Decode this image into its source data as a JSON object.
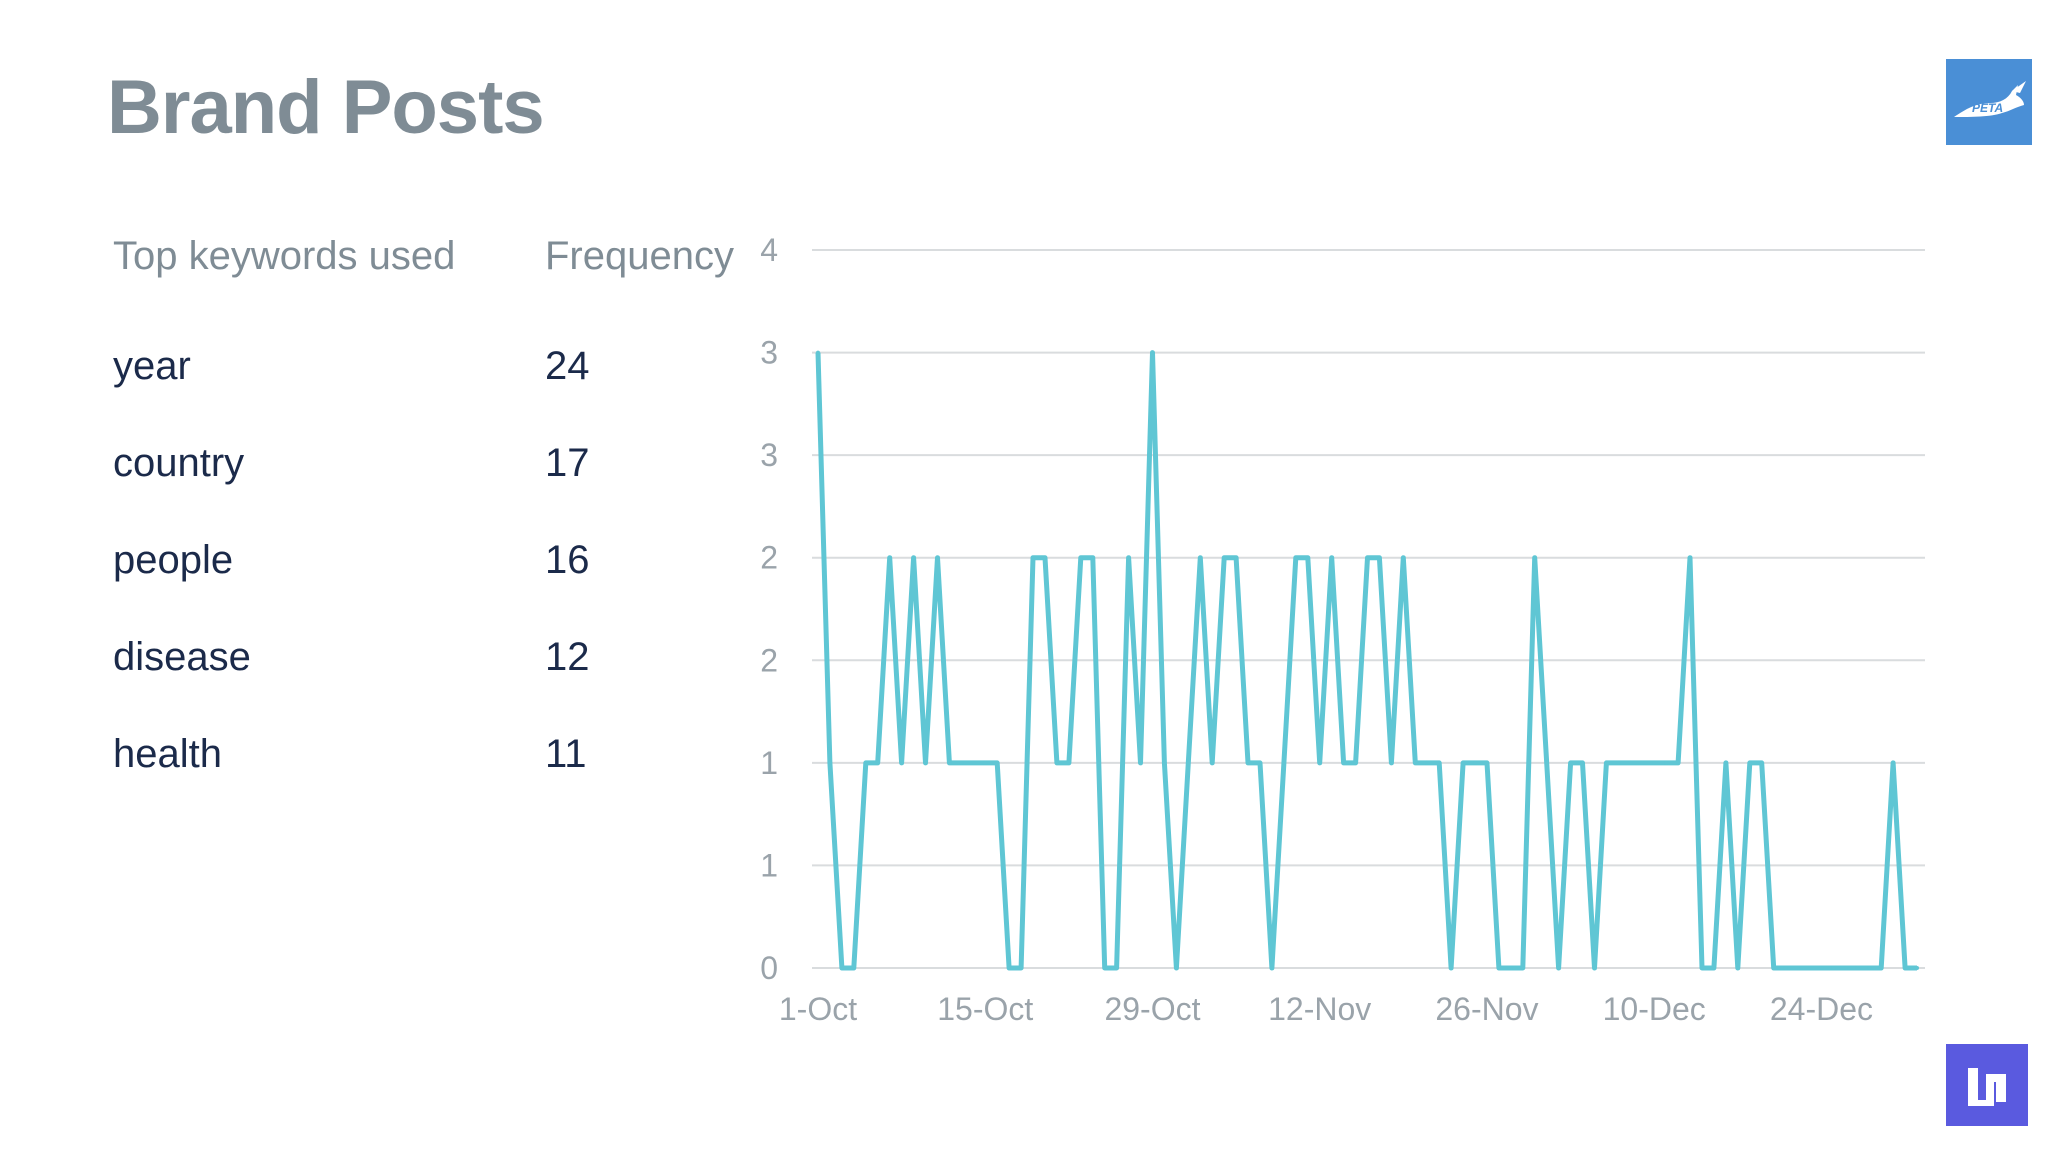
{
  "header": {
    "title": "Brand Posts",
    "brand_logo_text": "PETA"
  },
  "keywords": {
    "col_keyword": "Top keywords used",
    "col_frequency": "Frequency",
    "rows": [
      {
        "keyword": "year",
        "frequency": "24"
      },
      {
        "keyword": "country",
        "frequency": "17"
      },
      {
        "keyword": "people",
        "frequency": "16"
      },
      {
        "keyword": "disease",
        "frequency": "12"
      },
      {
        "keyword": "health",
        "frequency": "11"
      }
    ]
  },
  "chart_data": {
    "type": "line",
    "title": "",
    "xlabel": "",
    "ylabel": "",
    "ylim": [
      0,
      3.5
    ],
    "y_tick_labels": [
      "0",
      "1",
      "1",
      "2",
      "2",
      "3",
      "3",
      "4"
    ],
    "x_tick_labels": [
      "1-Oct",
      "15-Oct",
      "29-Oct",
      "12-Nov",
      "26-Nov",
      "10-Dec",
      "24-Dec"
    ],
    "grid": true,
    "legend": "none",
    "line_color": "#5fc6d4",
    "series": [
      {
        "values": [
          3,
          1,
          0,
          0,
          1,
          1,
          2,
          1,
          2,
          1,
          2,
          1,
          1,
          1,
          1,
          1,
          0,
          0,
          2,
          2,
          1,
          1,
          2,
          2,
          0,
          0,
          2,
          1,
          3,
          1,
          0,
          1,
          2,
          1,
          2,
          2,
          1,
          1,
          0,
          1,
          2,
          2,
          1,
          2,
          1,
          1,
          2,
          2,
          1,
          2,
          1,
          1,
          1,
          0,
          1,
          1,
          1,
          0,
          0,
          0,
          2,
          1,
          0,
          1,
          1,
          0,
          1,
          1,
          1,
          1,
          1,
          1,
          1,
          2,
          0,
          0,
          1,
          0,
          1,
          1,
          0,
          0,
          0,
          0,
          0,
          0,
          0,
          0,
          0,
          0,
          1,
          0,
          0
        ]
      }
    ]
  }
}
